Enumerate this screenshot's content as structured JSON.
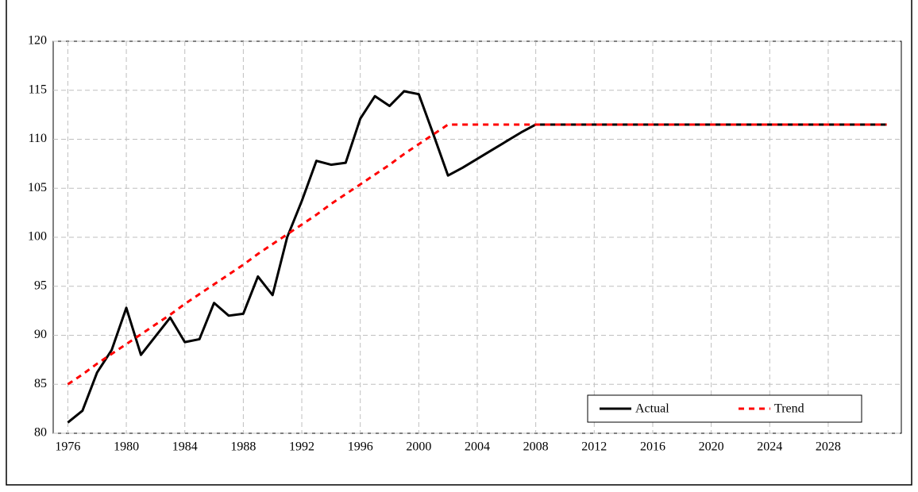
{
  "chart_data": {
    "type": "line",
    "x": [
      1976,
      1977,
      1978,
      1979,
      1980,
      1981,
      1982,
      1983,
      1984,
      1985,
      1986,
      1987,
      1988,
      1989,
      1990,
      1991,
      1992,
      1993,
      1994,
      1995,
      1996,
      1997,
      1998,
      1999,
      2000,
      2001,
      2002,
      2003,
      2004,
      2005,
      2006,
      2007,
      2008,
      2009,
      2010,
      2011,
      2012,
      2013,
      2014,
      2015,
      2016,
      2017,
      2018,
      2019,
      2020,
      2021,
      2022,
      2023,
      2024,
      2025,
      2026,
      2027,
      2028,
      2029,
      2030,
      2031,
      2032
    ],
    "series": [
      {
        "name": "Actual",
        "color": "#000000",
        "dash": false,
        "values": [
          81.1,
          82.3,
          86.2,
          88.5,
          92.8,
          88.0,
          89.9,
          91.8,
          89.3,
          89.6,
          93.3,
          92.0,
          92.2,
          96.0,
          94.1,
          100.0,
          103.7,
          107.8,
          107.4,
          107.6,
          112.1,
          114.4,
          113.4,
          114.9,
          114.6,
          110.5,
          106.3,
          107.1,
          108.0,
          108.9,
          109.8,
          110.7,
          111.5,
          111.5,
          111.5,
          111.5,
          111.5,
          111.5,
          111.5,
          111.5,
          111.5,
          111.5,
          111.5,
          111.5,
          111.5,
          111.5,
          111.5,
          111.5,
          111.5,
          111.5,
          111.5,
          111.5,
          111.5,
          111.5,
          111.5,
          111.5,
          111.5
        ]
      },
      {
        "name": "Trend",
        "color": "#ff0000",
        "dash": true,
        "values": [
          85.0,
          86.0,
          87.1,
          88.1,
          89.1,
          90.1,
          91.1,
          92.1,
          93.2,
          94.2,
          95.2,
          96.2,
          97.2,
          98.3,
          99.3,
          100.3,
          101.3,
          102.3,
          103.4,
          104.4,
          105.4,
          106.4,
          107.4,
          108.5,
          109.5,
          110.5,
          111.5,
          111.5,
          111.5,
          111.5,
          111.5,
          111.5,
          111.5,
          111.5,
          111.5,
          111.5,
          111.5,
          111.5,
          111.5,
          111.5,
          111.5,
          111.5,
          111.5,
          111.5,
          111.5,
          111.5,
          111.5,
          111.5,
          111.5,
          111.5,
          111.5,
          111.5,
          111.5,
          111.5,
          111.5,
          111.5,
          111.5
        ]
      }
    ],
    "xlim": [
      1975,
      2033
    ],
    "xticks": [
      1976,
      1980,
      1984,
      1988,
      1992,
      1996,
      2000,
      2004,
      2008,
      2012,
      2016,
      2020,
      2024,
      2028
    ],
    "ylim": [
      80,
      120
    ],
    "yticks": [
      80,
      85,
      90,
      95,
      100,
      105,
      110,
      115,
      120
    ],
    "grid": true,
    "legend": "bottom-right"
  }
}
